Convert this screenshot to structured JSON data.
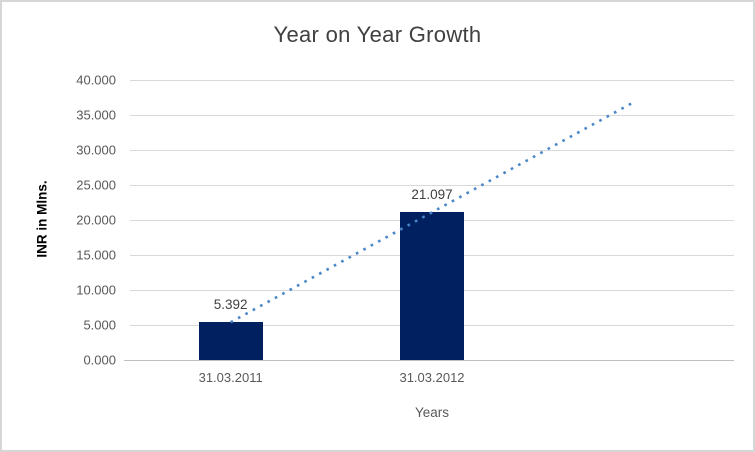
{
  "window": {
    "background": "#ffffff",
    "border_color": "#d6d6d6"
  },
  "chart_data": {
    "type": "bar",
    "title": "Year on Year Growth",
    "xlabel": "Years",
    "ylabel": "INR in Mlns.",
    "categories": [
      "31.03.2011",
      "31.03.2012"
    ],
    "values": [
      5.392,
      21.097
    ],
    "value_labels": [
      "5.392",
      "21.097"
    ],
    "ylim": [
      0,
      40
    ],
    "ytick_step": 5,
    "ytick_labels": [
      "0.000",
      "5.000",
      "10.000",
      "15.000",
      "20.000",
      "25.000",
      "30.000",
      "35.000",
      "40.000"
    ],
    "grid": true,
    "legend": false,
    "extra_category_slots": 1,
    "trendline": {
      "type": "linear",
      "style": "dotted",
      "forecast_periods": 1,
      "color": "#4a86c8"
    },
    "colors": {
      "bar": "#002060",
      "title_text": "#404040",
      "axis_text": "#595959",
      "axis_title_text": "#000000",
      "gridline": "#d9d9d9",
      "axis_line": "#bfbfbf"
    }
  }
}
